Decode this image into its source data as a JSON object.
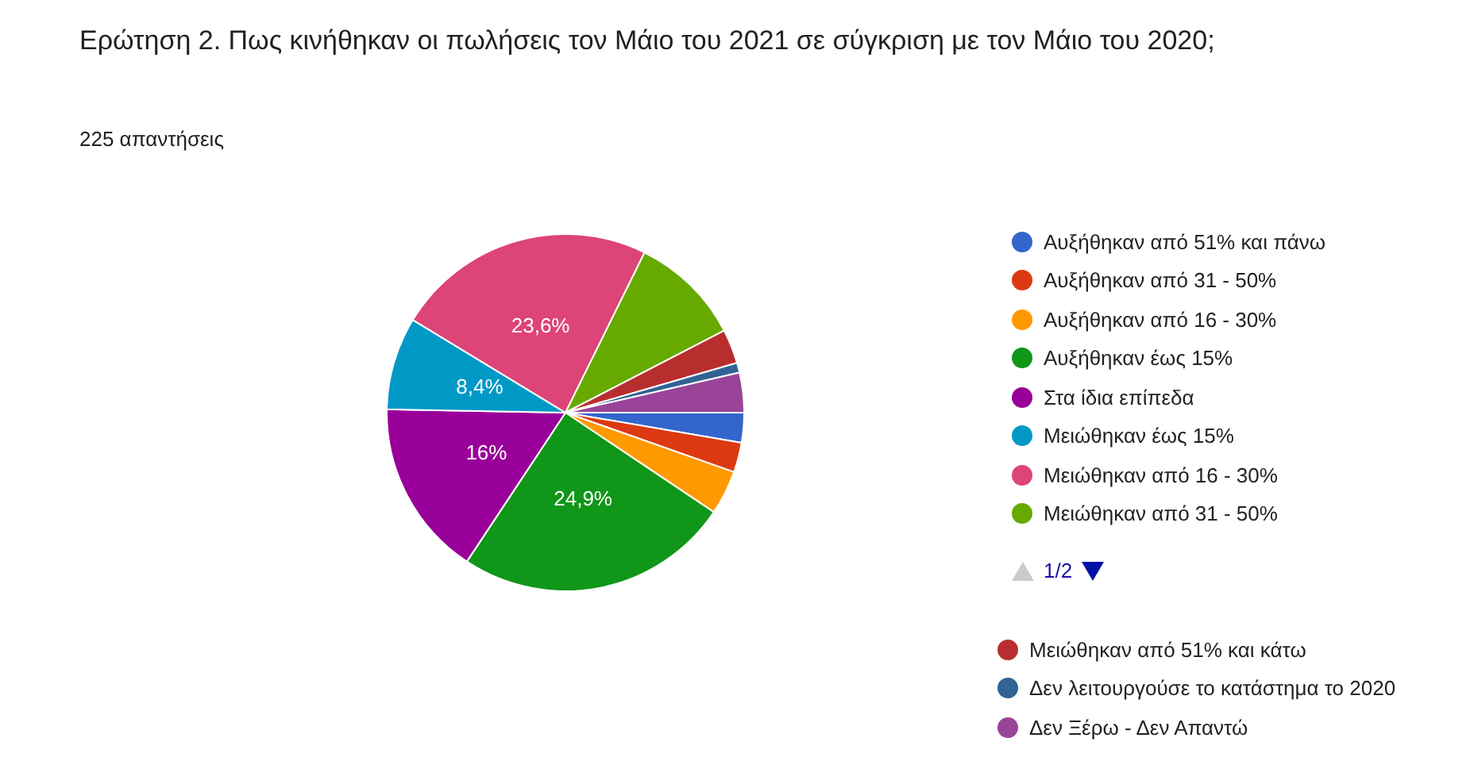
{
  "chart_data": {
    "type": "pie",
    "title": "Ερώτηση 2. Πως κινήθηκαν οι πωλήσεις τον Μάιο του 2021 σε σύγκριση με τον Μάιο του 2020;",
    "subtitle": "225 απαντήσεις",
    "categories": [
      "Αυξήθηκαν από 51% και πάνω",
      "Αυξήθηκαν από 31 - 50%",
      "Αυξήθηκαν από 16 - 30%",
      "Αυξήθηκαν έως 15%",
      "Στα ίδια επίπεδα",
      "Μειώθηκαν έως 15%",
      "Μειώθηκαν από 16 - 30%",
      "Μειώθηκαν από 31 - 50%",
      "Μειώθηκαν από 51% και κάτω",
      "Δεν λειτουργούσε το κατάστημα το 2020",
      "Δεν Ξέρω - Δεν Απαντώ"
    ],
    "values": [
      2.7,
      2.7,
      4,
      24.9,
      16,
      8.4,
      23.6,
      10.1,
      3.1,
      0.9,
      3.6
    ],
    "colors": [
      "#3366cc",
      "#dc3912",
      "#ff9900",
      "#109618",
      "#990099",
      "#0099c6",
      "#dd4477",
      "#66aa00",
      "#b82e2e",
      "#316395",
      "#994499"
    ],
    "value_labels": [
      null,
      null,
      null,
      "24,9%",
      "16%",
      "8,4%",
      "23,6%",
      null,
      null,
      null,
      null
    ],
    "annotations": [
      "1/2"
    ],
    "legend": "right"
  }
}
